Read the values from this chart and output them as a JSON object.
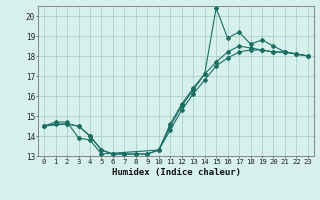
{
  "xlabel": "Humidex (Indice chaleur)",
  "ylabel": "",
  "bg_color": "#d6f0ec",
  "grid_color": "#aacfc8",
  "line_color": "#1a6e64",
  "xlim": [
    -0.5,
    23.5
  ],
  "ylim": [
    13.0,
    20.5
  ],
  "xticks": [
    0,
    1,
    2,
    3,
    4,
    5,
    6,
    7,
    8,
    9,
    10,
    11,
    12,
    13,
    14,
    15,
    16,
    17,
    18,
    19,
    20,
    21,
    22,
    23
  ],
  "yticks": [
    13,
    14,
    15,
    16,
    17,
    18,
    19,
    20
  ],
  "line1_x": [
    0,
    1,
    2,
    3,
    4,
    5,
    6,
    7,
    8,
    9,
    10,
    11,
    12,
    13,
    14,
    15,
    16,
    17,
    18,
    19,
    20,
    21,
    22,
    23
  ],
  "line1_y": [
    14.5,
    14.6,
    14.6,
    14.5,
    14.0,
    13.3,
    13.1,
    13.1,
    13.1,
    13.1,
    13.3,
    14.3,
    15.3,
    16.1,
    16.8,
    17.5,
    17.9,
    18.2,
    18.3,
    18.3,
    18.2,
    18.2,
    18.1,
    18.0
  ],
  "line2_x": [
    0,
    2,
    3,
    4,
    5,
    6,
    7,
    8,
    9,
    10,
    11,
    12,
    13,
    14,
    15,
    16,
    17,
    18,
    19,
    20,
    21,
    22,
    23
  ],
  "line2_y": [
    14.5,
    14.6,
    14.5,
    14.0,
    13.3,
    13.1,
    13.1,
    13.1,
    13.1,
    13.3,
    14.6,
    15.6,
    16.4,
    17.1,
    17.7,
    18.2,
    18.5,
    18.4,
    18.3,
    18.2,
    18.2,
    18.1,
    18.0
  ],
  "line3_x": [
    0,
    1,
    2,
    3,
    4,
    5,
    10,
    11,
    12,
    13,
    14,
    15,
    16,
    17,
    18,
    19,
    20,
    21,
    22,
    23
  ],
  "line3_y": [
    14.5,
    14.7,
    14.7,
    13.9,
    13.8,
    13.1,
    13.3,
    14.5,
    15.5,
    16.3,
    17.1,
    20.4,
    18.9,
    19.2,
    18.6,
    18.8,
    18.5,
    18.2,
    18.1,
    18.0
  ]
}
